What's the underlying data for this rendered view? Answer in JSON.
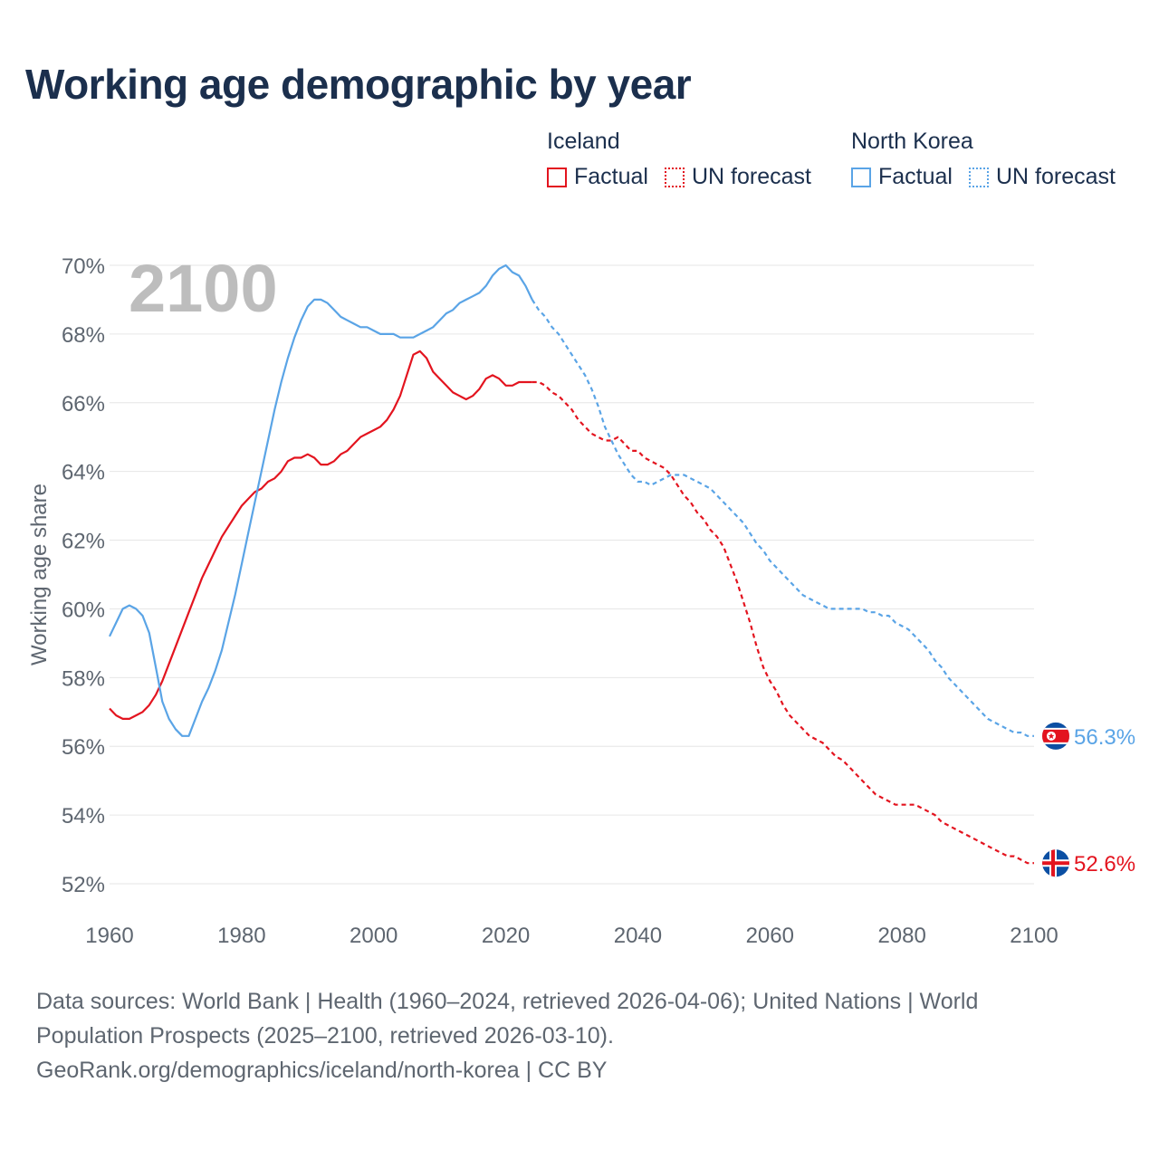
{
  "title": "Working age demographic by year",
  "legend": {
    "groups": [
      {
        "name": "Iceland",
        "color": "#e3141f",
        "factual_label": "Factual",
        "forecast_label": "UN forecast"
      },
      {
        "name": "North Korea",
        "color": "#5aa4e6",
        "factual_label": "Factual",
        "forecast_label": "UN forecast"
      }
    ]
  },
  "footer": {
    "line1": "Data sources: World Bank | Health (1960–2024, retrieved 2026-04-06); United Nations | World",
    "line2": "Population Prospects (2025–2100, retrieved 2026-03-10).",
    "line3": "GeoRank.org/demographics/iceland/north-korea | CC BY"
  },
  "chart_data": {
    "type": "line",
    "title": "Working age demographic by year",
    "ylabel": "Working age share",
    "xlabel": "",
    "xlim": [
      1960,
      2100
    ],
    "ylim": [
      52,
      70
    ],
    "x_ticks": [
      1960,
      1980,
      2000,
      2020,
      2040,
      2060,
      2080,
      2100
    ],
    "y_ticks": [
      52,
      54,
      56,
      58,
      60,
      62,
      64,
      66,
      68,
      70
    ],
    "y_tick_suffix": "%",
    "year_watermark": "2100",
    "forecast_start": 2024,
    "series": [
      {
        "name": "Iceland",
        "color": "#e3141f",
        "end_label": "52.6%",
        "flag": "iceland",
        "points": [
          [
            1960,
            57.1
          ],
          [
            1961,
            56.9
          ],
          [
            1962,
            56.8
          ],
          [
            1963,
            56.8
          ],
          [
            1964,
            56.9
          ],
          [
            1965,
            57.0
          ],
          [
            1966,
            57.2
          ],
          [
            1967,
            57.5
          ],
          [
            1968,
            57.9
          ],
          [
            1969,
            58.4
          ],
          [
            1970,
            58.9
          ],
          [
            1971,
            59.4
          ],
          [
            1972,
            59.9
          ],
          [
            1973,
            60.4
          ],
          [
            1974,
            60.9
          ],
          [
            1975,
            61.3
          ],
          [
            1976,
            61.7
          ],
          [
            1977,
            62.1
          ],
          [
            1978,
            62.4
          ],
          [
            1979,
            62.7
          ],
          [
            1980,
            63.0
          ],
          [
            1981,
            63.2
          ],
          [
            1982,
            63.4
          ],
          [
            1983,
            63.5
          ],
          [
            1984,
            63.7
          ],
          [
            1985,
            63.8
          ],
          [
            1986,
            64.0
          ],
          [
            1987,
            64.3
          ],
          [
            1988,
            64.4
          ],
          [
            1989,
            64.4
          ],
          [
            1990,
            64.5
          ],
          [
            1991,
            64.4
          ],
          [
            1992,
            64.2
          ],
          [
            1993,
            64.2
          ],
          [
            1994,
            64.3
          ],
          [
            1995,
            64.5
          ],
          [
            1996,
            64.6
          ],
          [
            1997,
            64.8
          ],
          [
            1998,
            65.0
          ],
          [
            1999,
            65.1
          ],
          [
            2000,
            65.2
          ],
          [
            2001,
            65.3
          ],
          [
            2002,
            65.5
          ],
          [
            2003,
            65.8
          ],
          [
            2004,
            66.2
          ],
          [
            2005,
            66.8
          ],
          [
            2006,
            67.4
          ],
          [
            2007,
            67.5
          ],
          [
            2008,
            67.3
          ],
          [
            2009,
            66.9
          ],
          [
            2010,
            66.7
          ],
          [
            2011,
            66.5
          ],
          [
            2012,
            66.3
          ],
          [
            2013,
            66.2
          ],
          [
            2014,
            66.1
          ],
          [
            2015,
            66.2
          ],
          [
            2016,
            66.4
          ],
          [
            2017,
            66.7
          ],
          [
            2018,
            66.8
          ],
          [
            2019,
            66.7
          ],
          [
            2020,
            66.5
          ],
          [
            2021,
            66.5
          ],
          [
            2022,
            66.6
          ],
          [
            2023,
            66.6
          ],
          [
            2024,
            66.6
          ],
          [
            2025,
            66.6
          ],
          [
            2026,
            66.5
          ],
          [
            2027,
            66.3
          ],
          [
            2028,
            66.2
          ],
          [
            2029,
            66.0
          ],
          [
            2030,
            65.8
          ],
          [
            2031,
            65.5
          ],
          [
            2032,
            65.3
          ],
          [
            2033,
            65.1
          ],
          [
            2034,
            65.0
          ],
          [
            2035,
            64.9
          ],
          [
            2036,
            64.9
          ],
          [
            2037,
            65.0
          ],
          [
            2038,
            64.8
          ],
          [
            2039,
            64.6
          ],
          [
            2040,
            64.6
          ],
          [
            2041,
            64.4
          ],
          [
            2042,
            64.3
          ],
          [
            2043,
            64.2
          ],
          [
            2044,
            64.1
          ],
          [
            2045,
            63.9
          ],
          [
            2046,
            63.6
          ],
          [
            2047,
            63.3
          ],
          [
            2048,
            63.1
          ],
          [
            2049,
            62.8
          ],
          [
            2050,
            62.6
          ],
          [
            2051,
            62.3
          ],
          [
            2052,
            62.1
          ],
          [
            2053,
            61.8
          ],
          [
            2054,
            61.3
          ],
          [
            2055,
            60.8
          ],
          [
            2056,
            60.2
          ],
          [
            2057,
            59.6
          ],
          [
            2058,
            58.9
          ],
          [
            2059,
            58.3
          ],
          [
            2060,
            57.9
          ],
          [
            2061,
            57.6
          ],
          [
            2062,
            57.2
          ],
          [
            2063,
            56.9
          ],
          [
            2064,
            56.7
          ],
          [
            2065,
            56.5
          ],
          [
            2066,
            56.3
          ],
          [
            2067,
            56.2
          ],
          [
            2068,
            56.1
          ],
          [
            2069,
            55.9
          ],
          [
            2070,
            55.7
          ],
          [
            2071,
            55.6
          ],
          [
            2072,
            55.4
          ],
          [
            2073,
            55.2
          ],
          [
            2074,
            55.0
          ],
          [
            2075,
            54.8
          ],
          [
            2076,
            54.6
          ],
          [
            2077,
            54.5
          ],
          [
            2078,
            54.4
          ],
          [
            2079,
            54.3
          ],
          [
            2080,
            54.3
          ],
          [
            2081,
            54.3
          ],
          [
            2082,
            54.3
          ],
          [
            2083,
            54.2
          ],
          [
            2084,
            54.1
          ],
          [
            2085,
            54.0
          ],
          [
            2086,
            53.8
          ],
          [
            2087,
            53.7
          ],
          [
            2088,
            53.6
          ],
          [
            2089,
            53.5
          ],
          [
            2090,
            53.4
          ],
          [
            2091,
            53.3
          ],
          [
            2092,
            53.2
          ],
          [
            2093,
            53.1
          ],
          [
            2094,
            53.0
          ],
          [
            2095,
            52.9
          ],
          [
            2096,
            52.8
          ],
          [
            2097,
            52.8
          ],
          [
            2098,
            52.7
          ],
          [
            2099,
            52.6
          ],
          [
            2100,
            52.6
          ]
        ]
      },
      {
        "name": "North Korea",
        "color": "#5aa4e6",
        "end_label": "56.3%",
        "flag": "north-korea",
        "points": [
          [
            1960,
            59.2
          ],
          [
            1961,
            59.6
          ],
          [
            1962,
            60.0
          ],
          [
            1963,
            60.1
          ],
          [
            1964,
            60.0
          ],
          [
            1965,
            59.8
          ],
          [
            1966,
            59.3
          ],
          [
            1967,
            58.3
          ],
          [
            1968,
            57.3
          ],
          [
            1969,
            56.8
          ],
          [
            1970,
            56.5
          ],
          [
            1971,
            56.3
          ],
          [
            1972,
            56.3
          ],
          [
            1973,
            56.8
          ],
          [
            1974,
            57.3
          ],
          [
            1975,
            57.7
          ],
          [
            1976,
            58.2
          ],
          [
            1977,
            58.8
          ],
          [
            1978,
            59.6
          ],
          [
            1979,
            60.4
          ],
          [
            1980,
            61.3
          ],
          [
            1981,
            62.2
          ],
          [
            1982,
            63.1
          ],
          [
            1983,
            64.0
          ],
          [
            1984,
            64.9
          ],
          [
            1985,
            65.8
          ],
          [
            1986,
            66.6
          ],
          [
            1987,
            67.3
          ],
          [
            1988,
            67.9
          ],
          [
            1989,
            68.4
          ],
          [
            1990,
            68.8
          ],
          [
            1991,
            69.0
          ],
          [
            1992,
            69.0
          ],
          [
            1993,
            68.9
          ],
          [
            1994,
            68.7
          ],
          [
            1995,
            68.5
          ],
          [
            1996,
            68.4
          ],
          [
            1997,
            68.3
          ],
          [
            1998,
            68.2
          ],
          [
            1999,
            68.2
          ],
          [
            2000,
            68.1
          ],
          [
            2001,
            68.0
          ],
          [
            2002,
            68.0
          ],
          [
            2003,
            68.0
          ],
          [
            2004,
            67.9
          ],
          [
            2005,
            67.9
          ],
          [
            2006,
            67.9
          ],
          [
            2007,
            68.0
          ],
          [
            2008,
            68.1
          ],
          [
            2009,
            68.2
          ],
          [
            2010,
            68.4
          ],
          [
            2011,
            68.6
          ],
          [
            2012,
            68.7
          ],
          [
            2013,
            68.9
          ],
          [
            2014,
            69.0
          ],
          [
            2015,
            69.1
          ],
          [
            2016,
            69.2
          ],
          [
            2017,
            69.4
          ],
          [
            2018,
            69.7
          ],
          [
            2019,
            69.9
          ],
          [
            2020,
            70.0
          ],
          [
            2021,
            69.8
          ],
          [
            2022,
            69.7
          ],
          [
            2023,
            69.4
          ],
          [
            2024,
            69.0
          ],
          [
            2025,
            68.7
          ],
          [
            2026,
            68.5
          ],
          [
            2027,
            68.2
          ],
          [
            2028,
            68.0
          ],
          [
            2029,
            67.7
          ],
          [
            2030,
            67.4
          ],
          [
            2031,
            67.1
          ],
          [
            2032,
            66.8
          ],
          [
            2033,
            66.4
          ],
          [
            2034,
            65.9
          ],
          [
            2035,
            65.3
          ],
          [
            2036,
            64.9
          ],
          [
            2037,
            64.5
          ],
          [
            2038,
            64.2
          ],
          [
            2039,
            63.9
          ],
          [
            2040,
            63.7
          ],
          [
            2041,
            63.7
          ],
          [
            2042,
            63.6
          ],
          [
            2043,
            63.7
          ],
          [
            2044,
            63.8
          ],
          [
            2045,
            63.9
          ],
          [
            2046,
            63.9
          ],
          [
            2047,
            63.9
          ],
          [
            2048,
            63.8
          ],
          [
            2049,
            63.7
          ],
          [
            2050,
            63.6
          ],
          [
            2051,
            63.5
          ],
          [
            2052,
            63.3
          ],
          [
            2053,
            63.1
          ],
          [
            2054,
            62.9
          ],
          [
            2055,
            62.7
          ],
          [
            2056,
            62.5
          ],
          [
            2057,
            62.2
          ],
          [
            2058,
            61.9
          ],
          [
            2059,
            61.7
          ],
          [
            2060,
            61.4
          ],
          [
            2061,
            61.2
          ],
          [
            2062,
            61.0
          ],
          [
            2063,
            60.8
          ],
          [
            2064,
            60.6
          ],
          [
            2065,
            60.4
          ],
          [
            2066,
            60.3
          ],
          [
            2067,
            60.2
          ],
          [
            2068,
            60.1
          ],
          [
            2069,
            60.0
          ],
          [
            2070,
            60.0
          ],
          [
            2071,
            60.0
          ],
          [
            2072,
            60.0
          ],
          [
            2073,
            60.0
          ],
          [
            2074,
            60.0
          ],
          [
            2075,
            59.9
          ],
          [
            2076,
            59.9
          ],
          [
            2077,
            59.8
          ],
          [
            2078,
            59.8
          ],
          [
            2079,
            59.6
          ],
          [
            2080,
            59.5
          ],
          [
            2081,
            59.4
          ],
          [
            2082,
            59.2
          ],
          [
            2083,
            59.0
          ],
          [
            2084,
            58.8
          ],
          [
            2085,
            58.5
          ],
          [
            2086,
            58.3
          ],
          [
            2087,
            58.0
          ],
          [
            2088,
            57.8
          ],
          [
            2089,
            57.6
          ],
          [
            2090,
            57.4
          ],
          [
            2091,
            57.2
          ],
          [
            2092,
            57.0
          ],
          [
            2093,
            56.8
          ],
          [
            2094,
            56.7
          ],
          [
            2095,
            56.6
          ],
          [
            2096,
            56.5
          ],
          [
            2097,
            56.4
          ],
          [
            2098,
            56.4
          ],
          [
            2099,
            56.3
          ],
          [
            2100,
            56.3
          ]
        ]
      }
    ]
  }
}
